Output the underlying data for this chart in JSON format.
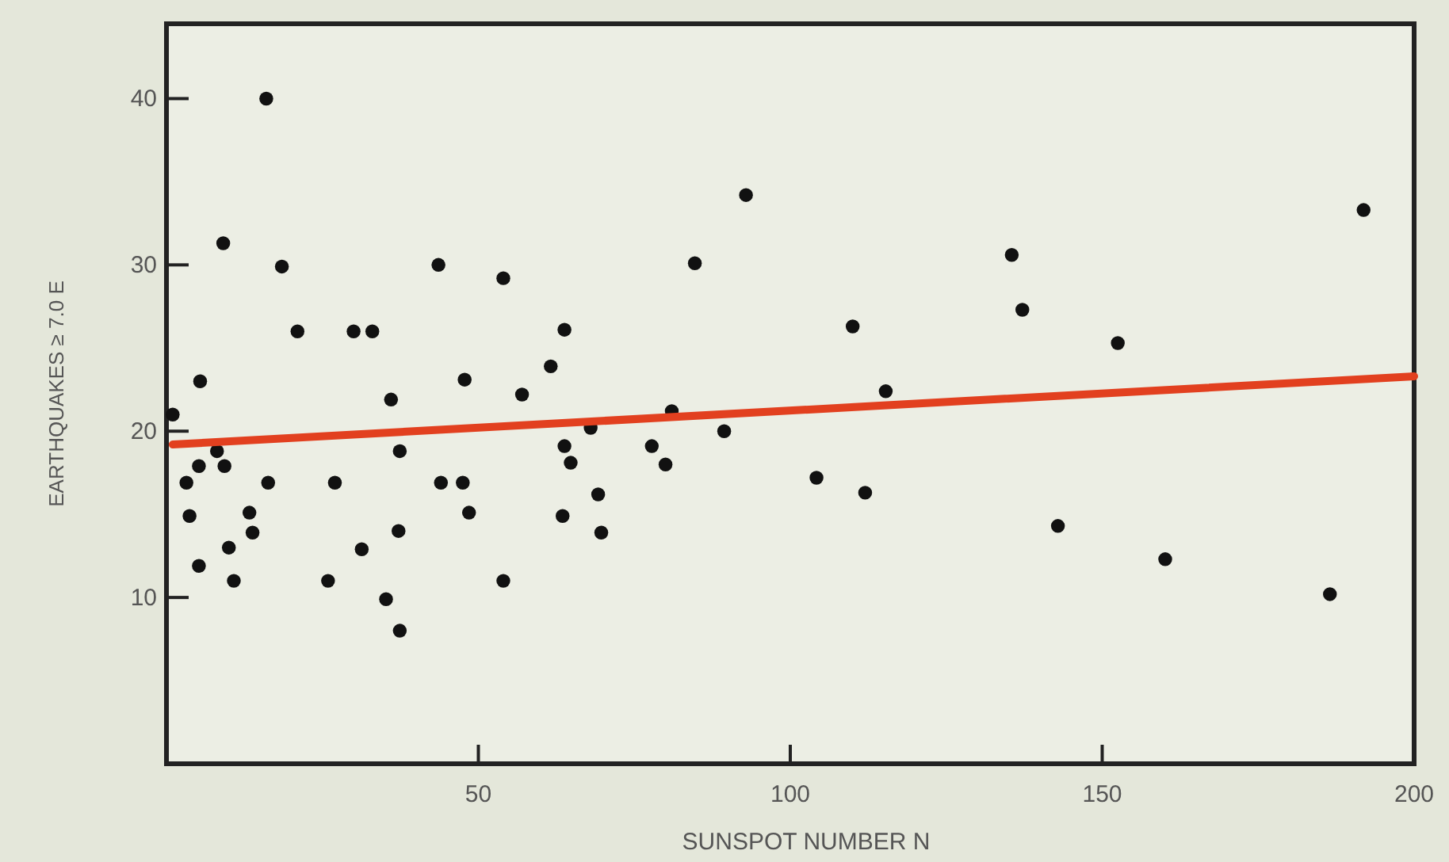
{
  "chart_data": {
    "type": "scatter",
    "xlabel": "SUNSPOT NUMBER  N",
    "ylabel": "EARTHQUAKES ≥ 7.0  E",
    "xlim": [
      0,
      200
    ],
    "xticks": [
      50,
      100,
      150,
      200
    ],
    "ylim": [
      0,
      44.5
    ],
    "yticks": [
      10,
      20,
      30,
      40
    ],
    "grid": false,
    "series": [
      {
        "marker": "circle",
        "color": "#111111",
        "x": [
          16,
          9.1,
          18.5,
          21,
          30,
          33,
          43.6,
          54,
          5.4,
          47.8,
          57,
          61.6,
          1,
          36,
          8.1,
          5.2,
          9.3,
          3.2,
          16.3,
          27,
          37.4,
          44,
          47.5,
          3.7,
          13.3,
          13.8,
          48.5,
          37.2,
          10,
          31.3,
          5.2,
          10.8,
          25.9,
          54,
          35.2,
          37.4,
          92.9,
          84.7,
          63.8,
          68,
          81,
          89.4,
          63.8,
          64.8,
          77.8,
          80,
          69.2,
          63.5,
          69.7,
          110,
          115.3,
          104.2,
          112,
          135.5,
          137.2,
          152.5,
          142.9,
          160.1,
          186.5,
          191.9
        ],
        "values": [
          40,
          31.3,
          29.9,
          26,
          26,
          26,
          30,
          29.2,
          23,
          23.1,
          22.2,
          23.9,
          21,
          21.9,
          18.8,
          17.9,
          17.9,
          16.9,
          16.9,
          16.9,
          18.8,
          16.9,
          16.9,
          14.9,
          15.1,
          13.9,
          15.1,
          14,
          13,
          12.9,
          11.9,
          11,
          11,
          11,
          9.9,
          8,
          34.2,
          30.1,
          26.1,
          20.2,
          21.2,
          20,
          19.1,
          18.1,
          19.1,
          18,
          16.2,
          14.9,
          13.9,
          26.3,
          22.4,
          17.2,
          16.3,
          30.6,
          27.3,
          25.3,
          14.3,
          12.3,
          10.2,
          33.3
        ]
      },
      {
        "type": "line",
        "color": "#e2401f",
        "x": [
          1,
          200
        ],
        "values": [
          19.2,
          23.3
        ]
      }
    ]
  }
}
